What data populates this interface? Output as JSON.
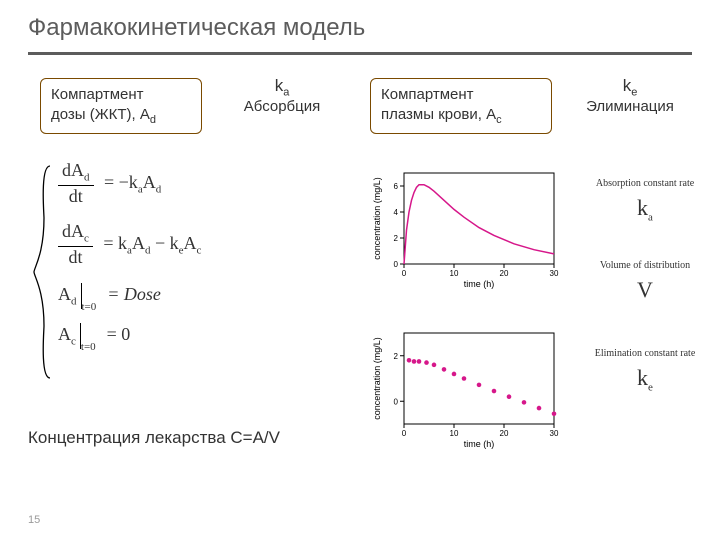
{
  "title": "Фармакокинетическая модель",
  "compartments": {
    "dose": {
      "line1": "Компартмент",
      "line2_pre": "дозы (ЖКТ), A",
      "line2_sub": "d"
    },
    "plasma": {
      "line1": "Компартмент",
      "line2_pre": "плазмы крови, A",
      "line2_sub": "c"
    }
  },
  "arrows": {
    "ka": {
      "symbol": "k",
      "sub": "a",
      "caption": "Абсорбция"
    },
    "ke": {
      "symbol": "k",
      "sub": "e",
      "caption": "Элиминация"
    }
  },
  "equations": {
    "row1": {
      "num_pre": "dA",
      "num_sub": "d",
      "den": "dt",
      "rhs_pre": "= −k",
      "rhs_sub1": "a",
      "rhs_mid": "A",
      "rhs_sub2": "d"
    },
    "row2": {
      "num_pre": "dA",
      "num_sub": "c",
      "den": "dt",
      "rhs": "= k",
      "s1": "a",
      "m1": "A",
      "s2": "d",
      "m2": " − k",
      "s3": "e",
      "m3": "A",
      "s4": "c"
    },
    "row3": {
      "lhs": "A",
      "lhs_sub": "d",
      "cond": "t=0",
      "rhs": "= Dose"
    },
    "row4": {
      "lhs": "A",
      "lhs_sub": "c",
      "cond": "t=0",
      "rhs": "= 0"
    }
  },
  "concentration_line": "Концентрация лекарства C=A/V",
  "slide_number": "15",
  "params": {
    "ka": {
      "desc": "Absorption constant rate",
      "sym": "k",
      "sub": "a"
    },
    "V": {
      "desc": "Volume of distribution",
      "sym": "V",
      "sub": ""
    },
    "ke": {
      "desc": "Elimination constant rate",
      "sym": "k",
      "sub": "e"
    }
  },
  "chart_style": {
    "xlabel": "time (h)",
    "ylabel": "concentration (mg/L)",
    "label_fontsize": 9,
    "tick_fontsize": 8,
    "axis_color": "#000000",
    "background_color": "#ffffff",
    "tick_len": 4
  },
  "chart1": {
    "type": "line",
    "line_color": "#d6178a",
    "line_width": 1.5,
    "xlim": [
      0,
      30
    ],
    "xticks": [
      0,
      10,
      20,
      30
    ],
    "ylim": [
      0,
      7
    ],
    "yticks": [
      0,
      2,
      4,
      6
    ],
    "x": [
      0,
      0.5,
      1,
      1.5,
      2,
      2.5,
      3,
      4,
      5,
      6,
      8,
      10,
      12,
      15,
      18,
      22,
      26,
      30
    ],
    "y": [
      0,
      2.6,
      4.0,
      4.9,
      5.5,
      5.9,
      6.1,
      6.1,
      5.9,
      5.6,
      4.9,
      4.2,
      3.6,
      2.8,
      2.2,
      1.55,
      1.1,
      0.78
    ]
  },
  "chart2": {
    "type": "scatter",
    "marker_color": "#d6178a",
    "marker_size": 2.3,
    "xlim": [
      0,
      30
    ],
    "xticks": [
      0,
      10,
      20,
      30
    ],
    "ylim": [
      -1,
      3
    ],
    "yticks": [
      0,
      2
    ],
    "x": [
      1,
      2,
      3,
      4.5,
      6,
      8,
      10,
      12,
      15,
      18,
      21,
      24,
      27,
      30
    ],
    "y": [
      1.8,
      1.75,
      1.75,
      1.7,
      1.6,
      1.4,
      1.2,
      1.0,
      0.72,
      0.45,
      0.2,
      -0.05,
      -0.3,
      -0.55
    ]
  }
}
